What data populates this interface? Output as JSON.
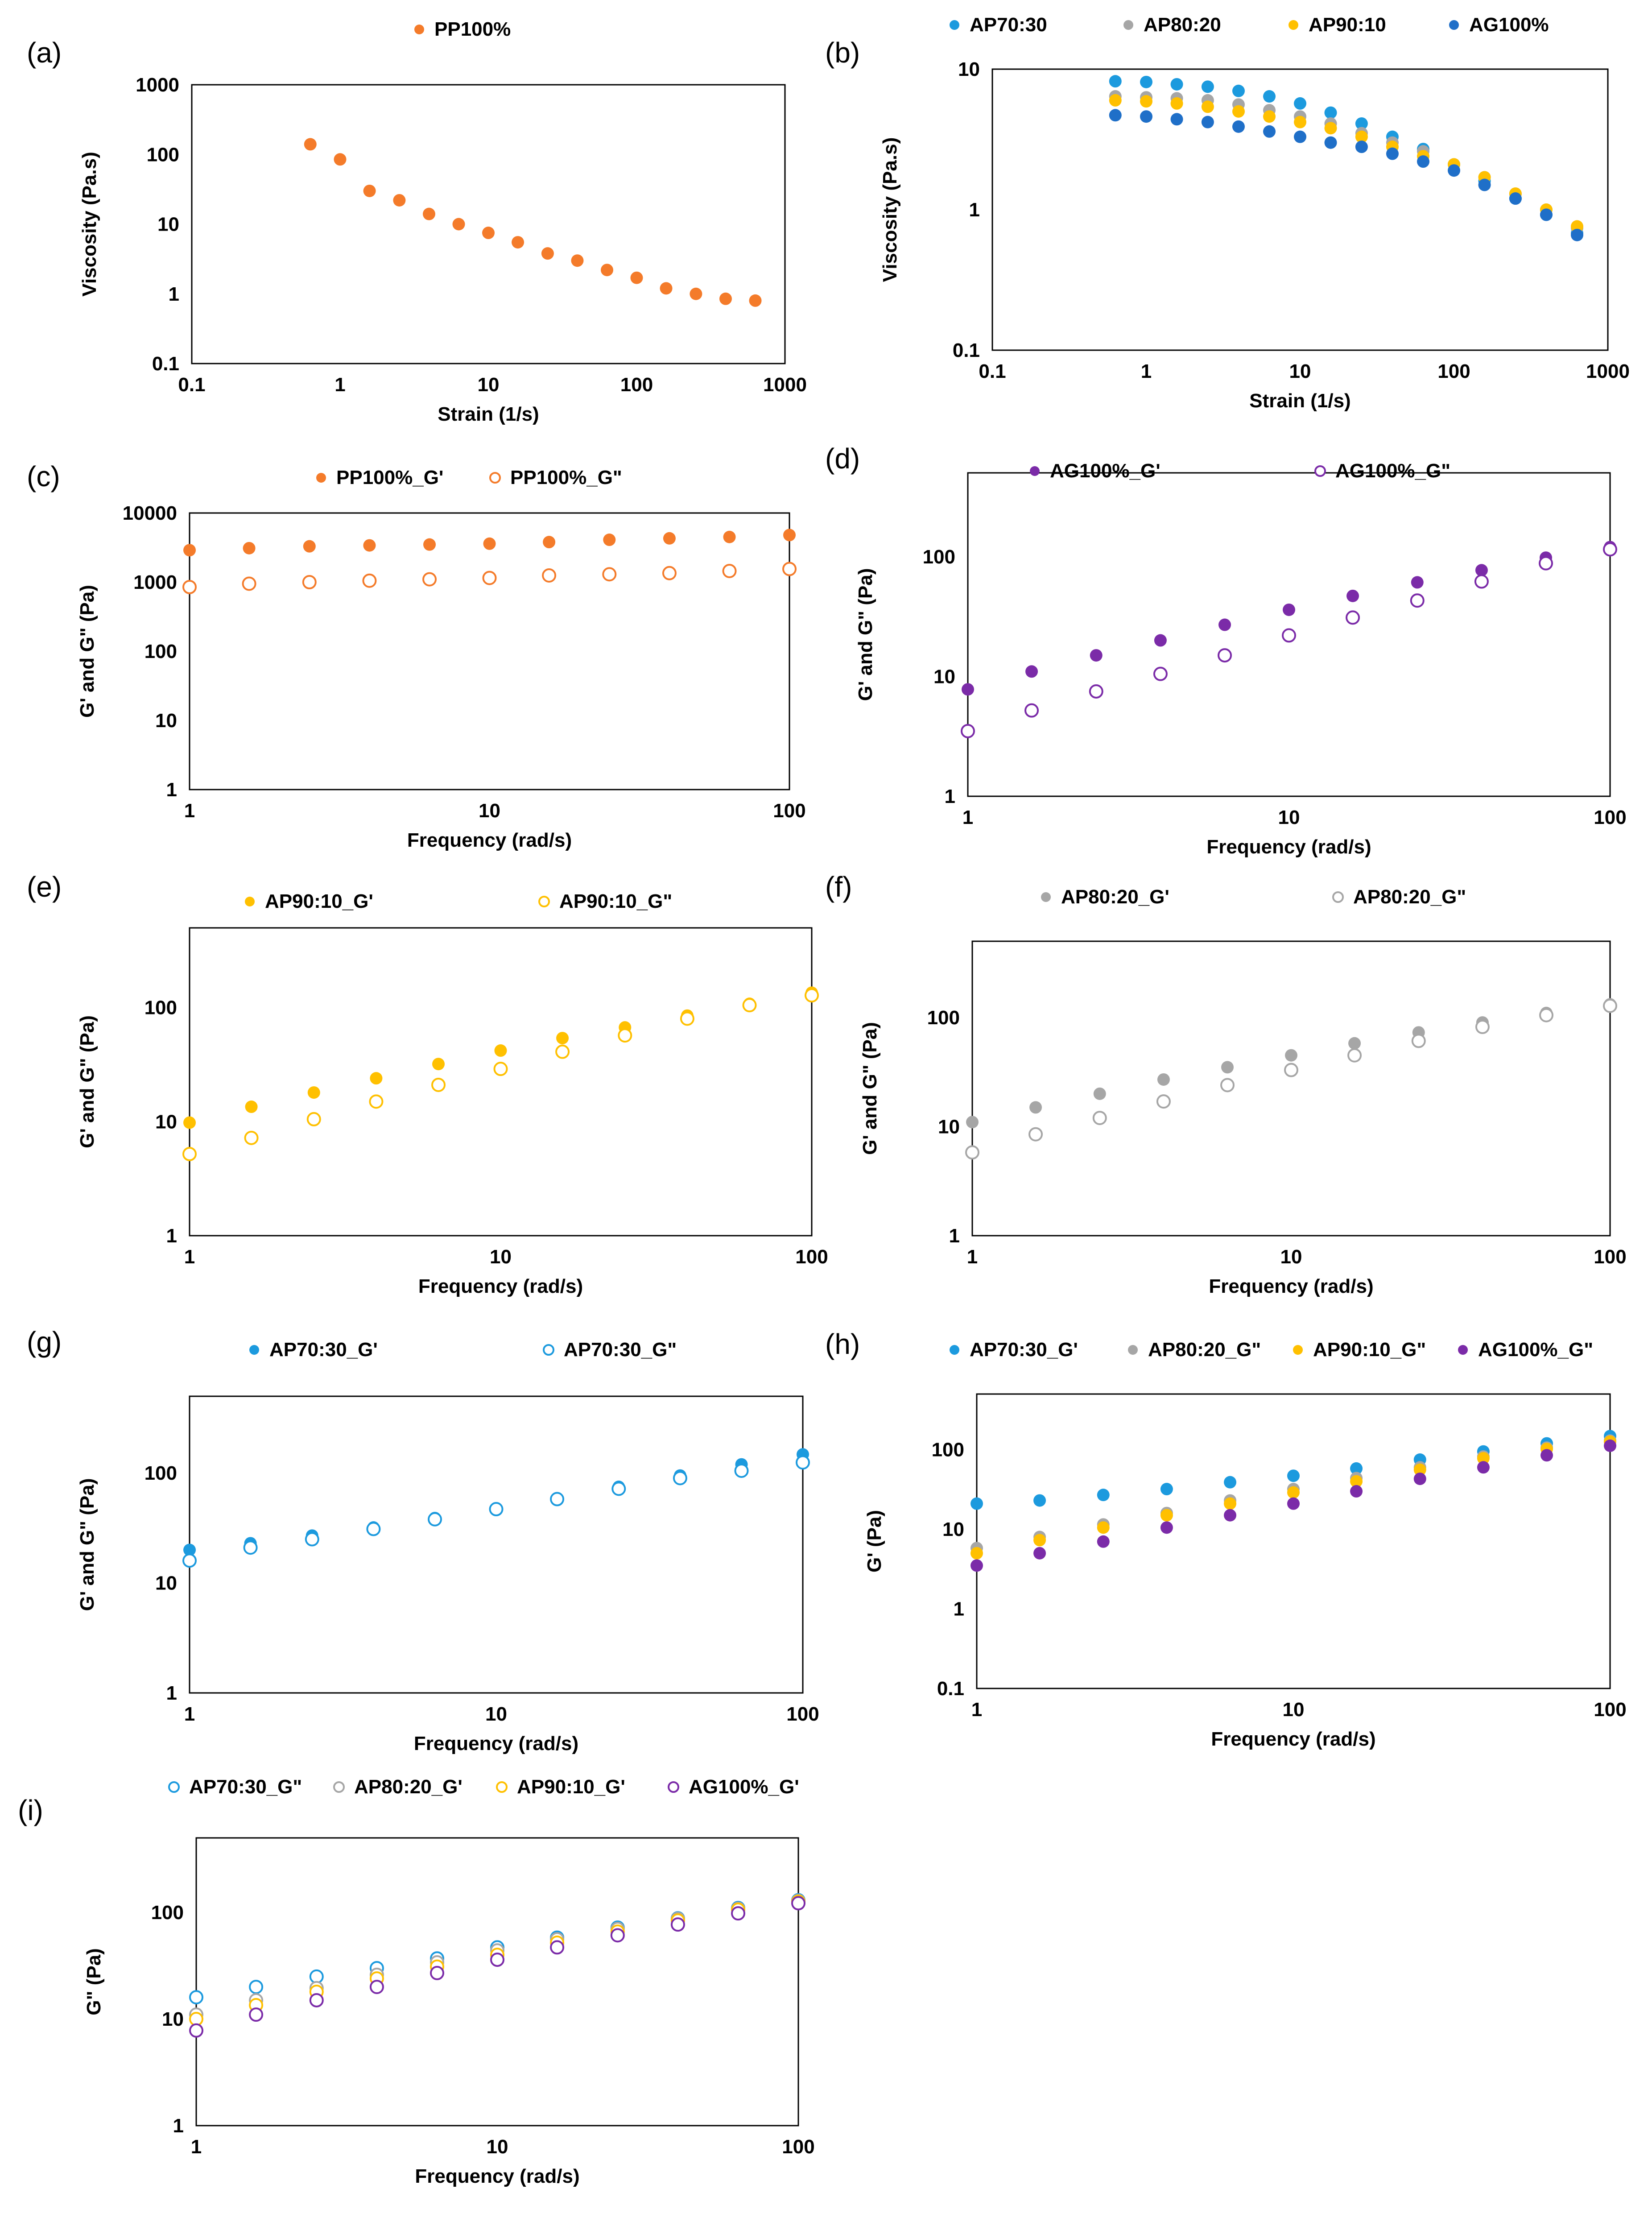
{
  "colors": {
    "PP100": "#f47b2a",
    "AP70": "#1c9ade",
    "AP80": "#a6a6a6",
    "AP90": "#ffc000",
    "AG100_blue": "#1f6fc8",
    "AG100_purple": "#7b2ba8"
  },
  "chart_data": [
    {
      "id": "a",
      "label": "(a)",
      "type": "scatter",
      "xlabel": "Strain (1/s)",
      "ylabel": "Viscosity (Pa.s)",
      "xscale": "log",
      "yscale": "log",
      "xlim": [
        0.1,
        1000
      ],
      "ylim": [
        0.1,
        1000
      ],
      "xticks": [
        "0.1",
        "1",
        "10",
        "100",
        "1000"
      ],
      "yticks": [
        "0.1",
        "1",
        "10",
        "100",
        "1000"
      ],
      "legend_position": "top",
      "series": [
        {
          "name": "PP100%",
          "color": "PP100",
          "filled": true,
          "x": [
            0.63,
            1.0,
            1.58,
            2.51,
            3.98,
            6.31,
            10,
            15.8,
            25.1,
            39.8,
            63.1,
            100,
            158,
            251,
            398,
            631
          ],
          "y": [
            140,
            85,
            30,
            22,
            14,
            10,
            7.5,
            5.5,
            3.8,
            3.0,
            2.2,
            1.7,
            1.2,
            1.0,
            0.85,
            0.8
          ]
        }
      ]
    },
    {
      "id": "b",
      "label": "(b)",
      "type": "scatter",
      "xlabel": "Strain (1/s)",
      "ylabel": "Viscosity (Pa.s)",
      "xscale": "log",
      "yscale": "log",
      "xlim": [
        0.1,
        1000
      ],
      "ylim": [
        0.1,
        10
      ],
      "xticks": [
        "0.1",
        "1",
        "10",
        "100",
        "1000"
      ],
      "yticks": [
        "0.1",
        "1",
        "10"
      ],
      "legend_position": "top",
      "series": [
        {
          "name": "AP70:30",
          "color": "AP70",
          "filled": true,
          "x": [
            0.63,
            1.0,
            1.58,
            2.51,
            3.98,
            6.31,
            10,
            15.8,
            25.1,
            39.8,
            63.1,
            100,
            158,
            251,
            398,
            631
          ],
          "y": [
            8.2,
            8.1,
            7.8,
            7.5,
            7.0,
            6.4,
            5.7,
            4.9,
            4.1,
            3.3,
            2.7,
            2.1,
            1.6,
            1.2,
            0.92,
            0.68
          ]
        },
        {
          "name": "AP80:20",
          "color": "AP80",
          "filled": true,
          "x": [
            0.63,
            1.0,
            1.58,
            2.51,
            3.98,
            6.31,
            10,
            15.8,
            25.1,
            39.8,
            63.1,
            100,
            158,
            251,
            398,
            631
          ],
          "y": [
            6.4,
            6.3,
            6.2,
            6.0,
            5.6,
            5.1,
            4.6,
            4.1,
            3.5,
            3.0,
            2.6,
            2.1,
            1.7,
            1.3,
            1.0,
            0.74
          ]
        },
        {
          "name": "AP90:10",
          "color": "AP90",
          "filled": true,
          "x": [
            0.63,
            1.0,
            1.58,
            2.51,
            3.98,
            6.31,
            10,
            15.8,
            25.1,
            39.8,
            63.1,
            100,
            158,
            251,
            398,
            631
          ],
          "y": [
            6.0,
            5.9,
            5.7,
            5.4,
            5.0,
            4.6,
            4.2,
            3.8,
            3.3,
            2.8,
            2.4,
            2.1,
            1.7,
            1.3,
            1.0,
            0.76
          ]
        },
        {
          "name": "AG100%",
          "color": "AG100_blue",
          "filled": true,
          "x": [
            0.63,
            1.0,
            1.58,
            2.51,
            3.98,
            6.31,
            10,
            15.8,
            25.1,
            39.8,
            63.1,
            100,
            158,
            251,
            398,
            631
          ],
          "y": [
            4.7,
            4.6,
            4.4,
            4.2,
            3.9,
            3.6,
            3.3,
            3.0,
            2.8,
            2.5,
            2.2,
            1.9,
            1.5,
            1.2,
            0.92,
            0.66
          ]
        }
      ]
    },
    {
      "id": "c",
      "label": "(c)",
      "type": "scatter",
      "xlabel": "Frequency (rad/s)",
      "ylabel": "G' and G\" (Pa)",
      "xscale": "log",
      "yscale": "log",
      "xlim": [
        1,
        100
      ],
      "ylim": [
        1,
        10000
      ],
      "xticks": [
        "1",
        "10",
        "100"
      ],
      "yticks": [
        "1",
        "10",
        "100",
        "1000",
        "10000"
      ],
      "legend_position": "top",
      "series": [
        {
          "name": "PP100%_G'",
          "color": "PP100",
          "filled": true,
          "x": [
            1,
            1.58,
            2.51,
            3.98,
            6.31,
            10,
            15.8,
            25.1,
            39.8,
            63.1,
            100
          ],
          "y": [
            2900,
            3100,
            3300,
            3400,
            3500,
            3600,
            3800,
            4100,
            4300,
            4500,
            4800
          ]
        },
        {
          "name": "PP100%_G\"",
          "color": "PP100",
          "filled": false,
          "x": [
            1,
            1.58,
            2.51,
            3.98,
            6.31,
            10,
            15.8,
            25.1,
            39.8,
            63.1,
            100
          ],
          "y": [
            850,
            950,
            1000,
            1050,
            1100,
            1150,
            1250,
            1300,
            1350,
            1450,
            1550
          ]
        }
      ]
    },
    {
      "id": "d",
      "label": "(d)",
      "type": "scatter",
      "xlabel": "Frequency (rad/s)",
      "ylabel": "G' and G\" (Pa)",
      "xscale": "log",
      "yscale": "log",
      "xlim": [
        1,
        100
      ],
      "ylim": [
        1,
        500
      ],
      "xticks": [
        "1",
        "10",
        "100"
      ],
      "yticks": [
        "1",
        "10",
        "100"
      ],
      "legend_position": "top",
      "series": [
        {
          "name": "AG100%_G'",
          "color": "AG100_purple",
          "filled": true,
          "x": [
            1,
            1.58,
            2.51,
            3.98,
            6.31,
            10,
            15.8,
            25.1,
            39.8,
            63.1,
            100
          ],
          "y": [
            7.8,
            11,
            15,
            20,
            27,
            36,
            47,
            61,
            77,
            98,
            120
          ]
        },
        {
          "name": "AG100%_G\"",
          "color": "AG100_purple",
          "filled": false,
          "x": [
            1,
            1.58,
            2.51,
            3.98,
            6.31,
            10,
            15.8,
            25.1,
            39.8,
            63.1,
            100
          ],
          "y": [
            3.5,
            5.2,
            7.5,
            10.5,
            15,
            22,
            31,
            43,
            62,
            88,
            115
          ]
        }
      ]
    },
    {
      "id": "e",
      "label": "(e)",
      "type": "scatter",
      "xlabel": "Frequency (rad/s)",
      "ylabel": "G' and G\" (Pa)",
      "xscale": "log",
      "yscale": "log",
      "xlim": [
        1,
        100
      ],
      "ylim": [
        1,
        500
      ],
      "xticks": [
        "1",
        "10",
        "100"
      ],
      "yticks": [
        "1",
        "10",
        "100"
      ],
      "legend_position": "top",
      "series": [
        {
          "name": "AP90:10_G'",
          "color": "AP90",
          "filled": true,
          "x": [
            1,
            1.58,
            2.51,
            3.98,
            6.31,
            10,
            15.8,
            25.1,
            39.8,
            63.1,
            100
          ],
          "y": [
            9.8,
            13.5,
            18,
            24,
            32,
            42,
            54,
            67,
            85,
            108,
            135
          ]
        },
        {
          "name": "AP90:10_G\"",
          "color": "AP90",
          "filled": false,
          "x": [
            1,
            1.58,
            2.51,
            3.98,
            6.31,
            10,
            15.8,
            25.1,
            39.8,
            63.1,
            100
          ],
          "y": [
            5.2,
            7.2,
            10.5,
            15,
            21,
            29,
            41,
            57,
            80,
            105,
            128
          ]
        }
      ]
    },
    {
      "id": "f",
      "label": "(f)",
      "type": "scatter",
      "xlabel": "Frequency (rad/s)",
      "ylabel": "G' and G\" (Pa)",
      "xscale": "log",
      "yscale": "log",
      "xlim": [
        1,
        100
      ],
      "ylim": [
        1,
        500
      ],
      "xticks": [
        "1",
        "10",
        "100"
      ],
      "yticks": [
        "1",
        "10",
        "100"
      ],
      "legend_position": "top",
      "series": [
        {
          "name": "AP80:20_G'",
          "color": "AP80",
          "filled": true,
          "x": [
            1,
            1.58,
            2.51,
            3.98,
            6.31,
            10,
            15.8,
            25.1,
            39.8,
            63.1,
            100
          ],
          "y": [
            11,
            15,
            20,
            27,
            35,
            45,
            58,
            73,
            90,
            110,
            132
          ]
        },
        {
          "name": "AP80:20_G\"",
          "color": "AP80",
          "filled": false,
          "x": [
            1,
            1.58,
            2.51,
            3.98,
            6.31,
            10,
            15.8,
            25.1,
            39.8,
            63.1,
            100
          ],
          "y": [
            5.8,
            8.5,
            12,
            17,
            24,
            33,
            45,
            61,
            82,
            105,
            128
          ]
        }
      ]
    },
    {
      "id": "g",
      "label": "(g)",
      "type": "scatter",
      "xlabel": "Frequency (rad/s)",
      "ylabel": "G' and G\" (Pa)",
      "xscale": "log",
      "yscale": "log",
      "xlim": [
        1,
        100
      ],
      "ylim": [
        1,
        500
      ],
      "xticks": [
        "1",
        "10",
        "100"
      ],
      "yticks": [
        "1",
        "10",
        "100"
      ],
      "legend_position": "top",
      "series": [
        {
          "name": "AP70:30_G'",
          "color": "AP70",
          "filled": true,
          "x": [
            1,
            1.58,
            2.51,
            3.98,
            6.31,
            10,
            15.8,
            25.1,
            39.8,
            63.1,
            100
          ],
          "y": [
            20,
            23,
            27,
            32,
            39,
            47,
            59,
            75,
            95,
            120,
            148
          ]
        },
        {
          "name": "AP70:30_G\"",
          "color": "AP70",
          "filled": false,
          "x": [
            1,
            1.58,
            2.51,
            3.98,
            6.31,
            10,
            15.8,
            25.1,
            39.8,
            63.1,
            100
          ],
          "y": [
            16,
            21,
            25,
            31,
            38,
            47,
            58,
            72,
            90,
            105,
            125
          ]
        }
      ]
    },
    {
      "id": "h",
      "label": "(h)",
      "type": "scatter",
      "xlabel": "Frequency (rad/s)",
      "ylabel": "G' (Pa)",
      "xscale": "log",
      "yscale": "log",
      "xlim": [
        1,
        100
      ],
      "ylim": [
        0.1,
        500
      ],
      "xticks": [
        "1",
        "10",
        "100"
      ],
      "yticks": [
        "0.1",
        "1",
        "10",
        "100"
      ],
      "legend_position": "top",
      "series": [
        {
          "name": "AP70:30_G'",
          "color": "AP70",
          "filled": true,
          "x": [
            1,
            1.58,
            2.51,
            3.98,
            6.31,
            10,
            15.8,
            25.1,
            39.8,
            63.1,
            100
          ],
          "y": [
            21,
            23,
            27,
            32,
            39,
            47,
            58,
            75,
            95,
            120,
            148
          ]
        },
        {
          "name": "AP80:20_G\"",
          "color": "AP80",
          "filled": true,
          "x": [
            1,
            1.58,
            2.51,
            3.98,
            6.31,
            10,
            15.8,
            25.1,
            39.8,
            63.1,
            100
          ],
          "y": [
            5.8,
            8.0,
            11.5,
            16,
            23,
            32,
            44,
            60,
            82,
            106,
            130
          ]
        },
        {
          "name": "AP90:10_G\"",
          "color": "AP90",
          "filled": true,
          "x": [
            1,
            1.58,
            2.51,
            3.98,
            6.31,
            10,
            15.8,
            25.1,
            39.8,
            63.1,
            100
          ],
          "y": [
            5.0,
            7.3,
            10.5,
            15,
            21,
            29,
            40,
            56,
            78,
            102,
            126
          ]
        },
        {
          "name": "AG100%_G\"",
          "color": "AG100_purple",
          "filled": true,
          "x": [
            1,
            1.58,
            2.51,
            3.98,
            6.31,
            10,
            15.8,
            25.1,
            39.8,
            63.1,
            100
          ],
          "y": [
            3.5,
            5.0,
            7.0,
            10.5,
            15,
            21,
            30,
            43,
            60,
            85,
            112
          ]
        }
      ]
    },
    {
      "id": "i",
      "label": "(i)",
      "type": "scatter",
      "xlabel": "Frequency (rad/s)",
      "ylabel": "G\" (Pa)",
      "xscale": "log",
      "yscale": "log",
      "xlim": [
        1,
        100
      ],
      "ylim": [
        1,
        500
      ],
      "xticks": [
        "1",
        "10",
        "100"
      ],
      "yticks": [
        "1",
        "10",
        "100"
      ],
      "legend_position": "top",
      "series": [
        {
          "name": "AP70:30_G\"",
          "color": "AP70",
          "filled": false,
          "x": [
            1,
            1.58,
            2.51,
            3.98,
            6.31,
            10,
            15.8,
            25.1,
            39.8,
            63.1,
            100
          ],
          "y": [
            16,
            20,
            25,
            30,
            37,
            47,
            58,
            72,
            88,
            110,
            130
          ]
        },
        {
          "name": "AP80:20_G'",
          "color": "AP80",
          "filled": false,
          "x": [
            1,
            1.58,
            2.51,
            3.98,
            6.31,
            10,
            15.8,
            25.1,
            39.8,
            63.1,
            100
          ],
          "y": [
            11,
            15,
            19.5,
            26,
            34,
            44,
            56,
            70,
            87,
            108,
            128
          ]
        },
        {
          "name": "AP90:10_G'",
          "color": "AP90",
          "filled": false,
          "x": [
            1,
            1.58,
            2.51,
            3.98,
            6.31,
            10,
            15.8,
            25.1,
            39.8,
            63.1,
            100
          ],
          "y": [
            10,
            13.5,
            18,
            24,
            31,
            40,
            52,
            66,
            84,
            106,
            126
          ]
        },
        {
          "name": "AG100%_G'",
          "color": "AG100_purple",
          "filled": false,
          "x": [
            1,
            1.58,
            2.51,
            3.98,
            6.31,
            10,
            15.8,
            25.1,
            39.8,
            63.1,
            100
          ],
          "y": [
            7.8,
            11,
            15,
            20,
            27,
            36,
            47,
            61,
            77,
            98,
            122
          ]
        }
      ]
    }
  ]
}
